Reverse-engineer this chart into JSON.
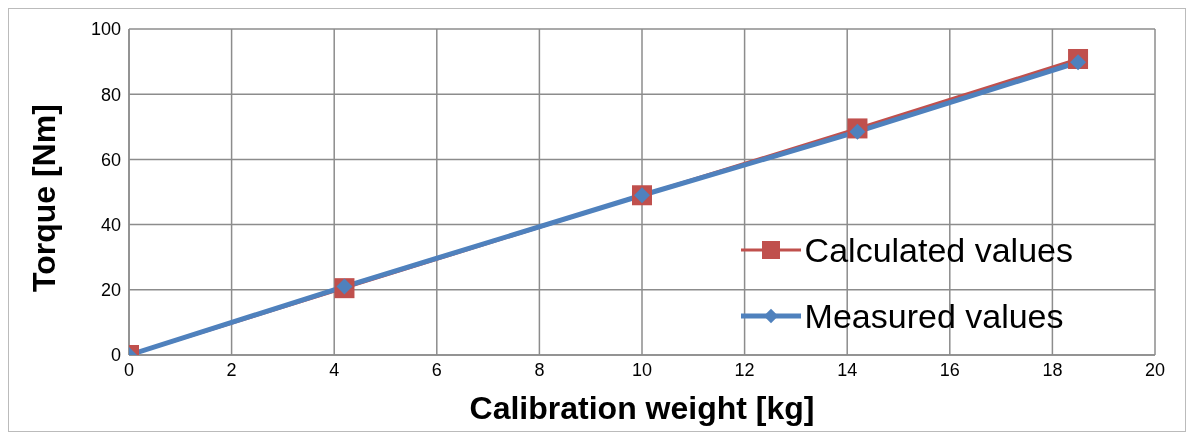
{
  "chart_data": {
    "type": "line",
    "xlabel": "Calibration weight [kg]",
    "ylabel": "Torque [Nm]",
    "x": [
      0,
      4.2,
      10,
      14.2,
      18.5
    ],
    "series": [
      {
        "name": "Calculated values",
        "color": "#c0504d",
        "marker": "square",
        "values": [
          0,
          20.5,
          49,
          69.5,
          90.8
        ]
      },
      {
        "name": "Measured values",
        "color": "#4f81bd",
        "marker": "diamond",
        "values": [
          0,
          21,
          49,
          68.5,
          89.8
        ]
      }
    ],
    "xlim": [
      0,
      20
    ],
    "xticks": [
      0,
      2,
      4,
      6,
      8,
      10,
      12,
      14,
      16,
      18,
      20
    ],
    "ylim": [
      0,
      100
    ],
    "yticks": [
      0,
      20,
      40,
      60,
      80,
      100
    ],
    "grid": true,
    "legend": "bottom right",
    "line_style": "solid"
  }
}
